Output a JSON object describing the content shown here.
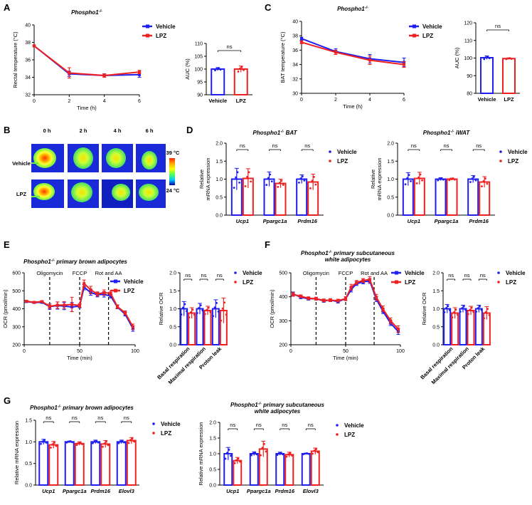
{
  "colors": {
    "vehicle": "#1f1ff0",
    "lpz": "#f02020",
    "black": "#000000"
  },
  "legend_labels": [
    "Vehicle",
    "LPZ"
  ],
  "ns_text": "ns",
  "panel_letters": [
    "A",
    "B",
    "C",
    "D",
    "E",
    "F",
    "G"
  ],
  "chart_data": [
    {
      "id": "A1",
      "type": "line",
      "title": "Phospho1-/-",
      "title_base": "Phospho1",
      "title_sup": "-/-",
      "xlabel": "Time (h)",
      "ylabel": "Rectal temperature (°C)",
      "xlim": [
        0,
        6
      ],
      "ylim": [
        32,
        40
      ],
      "x": [
        0,
        2,
        4,
        6
      ],
      "xticks": [
        0,
        2,
        4,
        6
      ],
      "yticks": [
        32,
        34,
        36,
        38,
        40
      ],
      "series": [
        {
          "name": "Vehicle",
          "values": [
            37.6,
            34.4,
            34.2,
            34.3
          ],
          "err": [
            0.1,
            0.3,
            0.2,
            0.3
          ]
        },
        {
          "name": "LPZ",
          "values": [
            37.6,
            34.5,
            34.2,
            34.6
          ],
          "err": [
            0.1,
            0.6,
            0.2,
            0.2
          ]
        }
      ]
    },
    {
      "id": "A2",
      "type": "bar",
      "ylabel": "AUC (%)",
      "ylim": [
        90,
        110
      ],
      "yticks": [
        90,
        95,
        100,
        105,
        110
      ],
      "categories": [
        "Vehicle",
        "LPZ"
      ],
      "values": [
        100,
        100
      ],
      "err": [
        0.6,
        1.2
      ],
      "sig": [
        "ns"
      ]
    },
    {
      "id": "C1",
      "type": "line",
      "title": "Phospho1-/-",
      "title_base": "Phospho1",
      "title_sup": "-/-",
      "xlabel": "Time (h)",
      "ylabel": "BAT temperature (°C)",
      "xlim": [
        0,
        6
      ],
      "ylim": [
        30,
        40
      ],
      "x": [
        0,
        2,
        4,
        6
      ],
      "xticks": [
        0,
        2,
        4,
        6
      ],
      "yticks": [
        30,
        32,
        34,
        36,
        38,
        40
      ],
      "series": [
        {
          "name": "Vehicle",
          "values": [
            37.6,
            35.8,
            34.8,
            34.3
          ],
          "err": [
            0.2,
            0.4,
            0.6,
            0.6
          ]
        },
        {
          "name": "LPZ",
          "values": [
            37.1,
            35.7,
            34.6,
            34.0
          ],
          "err": [
            0.2,
            0.3,
            0.6,
            0.4
          ]
        }
      ]
    },
    {
      "id": "C2",
      "type": "bar",
      "ylabel": "AUC (%)",
      "ylim": [
        80,
        120
      ],
      "yticks": [
        80,
        90,
        100,
        110,
        120
      ],
      "categories": [
        "Vehicle",
        "LPZ"
      ],
      "values": [
        100.2,
        99.7
      ],
      "err": [
        1.0,
        0.4
      ],
      "sig": [
        "ns"
      ]
    },
    {
      "id": "D1",
      "type": "grouped_bar",
      "title": "Phospho1-/- BAT",
      "title_base": "Phospho1",
      "title_sup": "-/-",
      "title_suffix": " BAT",
      "ylabel": "Relative mRNA expression",
      "ylim": [
        0,
        2.0
      ],
      "yticks": [
        0.0,
        0.5,
        1.0,
        1.5,
        2.0
      ],
      "categories": [
        "Ucp1",
        "Ppargc1a",
        "Prdm16"
      ],
      "series": [
        {
          "name": "Vehicle",
          "values": [
            1.0,
            1.0,
            1.0
          ],
          "err": [
            0.3,
            0.2,
            0.12
          ]
        },
        {
          "name": "LPZ",
          "values": [
            1.02,
            0.88,
            0.92
          ],
          "err": [
            0.27,
            0.12,
            0.22
          ]
        }
      ],
      "sig": [
        "ns",
        "ns",
        "ns"
      ]
    },
    {
      "id": "D2",
      "type": "grouped_bar",
      "title": "Phospho1-/- iWAT",
      "title_base": "Phospho1",
      "title_sup": "-/-",
      "title_suffix": " iWAT",
      "ylabel": "Relative mRNA expression",
      "ylim": [
        0,
        2.0
      ],
      "yticks": [
        0.0,
        0.5,
        1.0,
        1.5,
        2.0
      ],
      "categories": [
        "Ucp1",
        "Ppargc1a",
        "Prdm16"
      ],
      "series": [
        {
          "name": "Vehicle",
          "values": [
            1.0,
            1.0,
            1.0
          ],
          "err": [
            0.18,
            0.04,
            0.1
          ]
        },
        {
          "name": "LPZ",
          "values": [
            1.02,
            1.0,
            0.92
          ],
          "err": [
            0.17,
            0.03,
            0.15
          ]
        }
      ],
      "sig": [
        "ns",
        "ns",
        "ns"
      ]
    },
    {
      "id": "E1",
      "type": "line",
      "title": "Phospho1-/- primary brown adipocytes",
      "title_base": "Phospho1",
      "title_sup": "-/-",
      "title_suffix": " primary brown adipocytes",
      "xlabel": "Time (min)",
      "ylabel": "OCR (pmol/min)",
      "xlim": [
        0,
        100
      ],
      "ylim": [
        200,
        600
      ],
      "xticks": [
        0,
        50,
        100
      ],
      "yticks": [
        200,
        300,
        400,
        500,
        600
      ],
      "annotations": [
        {
          "text": "Oligomycin",
          "x": 23
        },
        {
          "text": "FCCP",
          "x": 50
        },
        {
          "text": "Rot and AA",
          "x": 76
        }
      ],
      "x": [
        2,
        9,
        16,
        23,
        30,
        36,
        43,
        50,
        54,
        60,
        66,
        72,
        78,
        84,
        91,
        98
      ],
      "series": [
        {
          "name": "Vehicle",
          "values": [
            440,
            435,
            436,
            412,
            418,
            415,
            410,
            415,
            520,
            490,
            478,
            480,
            470,
            410,
            370,
            290
          ],
          "err": [
            5,
            5,
            5,
            15,
            20,
            20,
            25,
            10,
            15,
            15,
            12,
            15,
            10,
            10,
            10,
            15
          ]
        },
        {
          "name": "LPZ",
          "values": [
            442,
            436,
            440,
            414,
            420,
            420,
            424,
            418,
            540,
            505,
            482,
            490,
            485,
            412,
            378,
            300
          ],
          "err": [
            5,
            5,
            5,
            12,
            18,
            20,
            40,
            10,
            20,
            20,
            12,
            15,
            12,
            10,
            10,
            15
          ]
        }
      ]
    },
    {
      "id": "E2",
      "type": "grouped_bar",
      "ylabel": "Relative OCR",
      "ylim": [
        0,
        2.0
      ],
      "yticks": [
        0.0,
        0.5,
        1.0,
        1.5,
        2.0
      ],
      "categories": [
        "Basal respiration",
        "Maximal respiration",
        "Proton leak"
      ],
      "series": [
        {
          "name": "Vehicle",
          "values": [
            1.0,
            1.0,
            1.0
          ],
          "err": [
            0.2,
            0.15,
            0.25
          ]
        },
        {
          "name": "LPZ",
          "values": [
            0.88,
            0.95,
            0.95
          ],
          "err": [
            0.15,
            0.12,
            0.35
          ]
        }
      ],
      "sig": [
        "ns",
        "ns",
        "ns"
      ]
    },
    {
      "id": "F1",
      "type": "line",
      "title": "Phospho1-/- primary subcutaneous white adipocytes",
      "title_base": "Phospho1",
      "title_sup": "-/-",
      "title_suffix": " primary subcutaneous",
      "title_line2": "white adipocytes",
      "xlabel": "Time (min)",
      "ylabel": "OCR (pmol/min)",
      "xlim": [
        0,
        100
      ],
      "ylim": [
        200,
        500
      ],
      "xticks": [
        0,
        50,
        100
      ],
      "yticks": [
        200,
        300,
        400,
        500
      ],
      "annotations": [
        {
          "text": "Oligomycin",
          "x": 23
        },
        {
          "text": "FCCP",
          "x": 50
        },
        {
          "text": "Rot and AA",
          "x": 76
        }
      ],
      "x": [
        2,
        9,
        16,
        23,
        30,
        36,
        43,
        50,
        55,
        60,
        66,
        72,
        78,
        84,
        91,
        98
      ],
      "series": [
        {
          "name": "Vehicle",
          "values": [
            412,
            398,
            392,
            392,
            383,
            386,
            380,
            392,
            430,
            455,
            462,
            466,
            390,
            340,
            290,
            255
          ],
          "err": [
            8,
            6,
            6,
            6,
            6,
            6,
            6,
            8,
            10,
            8,
            8,
            10,
            10,
            10,
            10,
            12
          ]
        },
        {
          "name": "LPZ",
          "values": [
            410,
            402,
            394,
            392,
            385,
            386,
            384,
            392,
            440,
            460,
            468,
            472,
            398,
            350,
            300,
            265
          ],
          "err": [
            8,
            6,
            6,
            6,
            6,
            6,
            6,
            8,
            12,
            8,
            8,
            12,
            12,
            12,
            12,
            14
          ]
        }
      ]
    },
    {
      "id": "F2",
      "type": "grouped_bar",
      "ylabel": "Relative OCR",
      "ylim": [
        0,
        2.0
      ],
      "yticks": [
        0.0,
        0.5,
        1.0,
        1.5,
        2.0
      ],
      "categories": [
        "Basal respiration",
        "Maximal respiration",
        "Proton leak"
      ],
      "series": [
        {
          "name": "Vehicle",
          "values": [
            1.0,
            1.0,
            1.0
          ],
          "err": [
            0.12,
            0.1,
            0.1
          ]
        },
        {
          "name": "LPZ",
          "values": [
            0.88,
            0.95,
            0.88
          ],
          "err": [
            0.15,
            0.12,
            0.18
          ]
        }
      ],
      "sig": [
        "ns",
        "ns",
        "ns"
      ]
    },
    {
      "id": "G1",
      "type": "grouped_bar",
      "title": "Phospho1-/- primary brown adipocytes",
      "title_base": "Phospho1",
      "title_sup": "-/-",
      "title_suffix": " primary brown adipocytes",
      "ylabel": "Relative mRNA expression",
      "ylim": [
        0,
        1.5
      ],
      "yticks": [
        0.0,
        0.5,
        1.0,
        1.5
      ],
      "categories": [
        "Ucp1",
        "Ppargc1a",
        "Prdm16",
        "Elovl3"
      ],
      "series": [
        {
          "name": "Vehicle",
          "values": [
            1.0,
            1.0,
            1.0,
            1.0
          ],
          "err": [
            0.06,
            0.02,
            0.04,
            0.04
          ]
        },
        {
          "name": "LPZ",
          "values": [
            0.93,
            0.96,
            0.95,
            1.03
          ],
          "err": [
            0.08,
            0.04,
            0.08,
            0.07
          ]
        }
      ],
      "sig": [
        "ns",
        "ns",
        "ns",
        "ns"
      ]
    },
    {
      "id": "G2",
      "type": "grouped_bar",
      "title": "Phospho1-/- primary subcutaneous white adipocytes",
      "title_base": "Phospho1",
      "title_sup": "-/-",
      "title_suffix": " primary subcutaneous",
      "title_line2": "white adipocytes",
      "ylabel": "Relative mRNA expression",
      "ylim": [
        0,
        2.0
      ],
      "yticks": [
        0.0,
        0.5,
        1.0,
        1.5,
        2.0
      ],
      "categories": [
        "Ucp1",
        "Ppargc1a",
        "Prdm16",
        "Elovl3"
      ],
      "series": [
        {
          "name": "Vehicle",
          "values": [
            1.0,
            1.0,
            1.0,
            1.0
          ],
          "err": [
            0.2,
            0.06,
            0.05,
            0.02
          ]
        },
        {
          "name": "LPZ",
          "values": [
            0.78,
            1.15,
            0.97,
            1.08
          ],
          "err": [
            0.1,
            0.25,
            0.08,
            0.1
          ]
        }
      ],
      "sig": [
        "ns",
        "ns",
        "ns",
        "ns"
      ]
    }
  ],
  "thermal": {
    "col_labels": [
      "0 h",
      "2 h",
      "4 h",
      "6 h"
    ],
    "row_labels": [
      "Vehicle",
      "LPZ"
    ],
    "scale_max": "39 °C",
    "scale_min": "24 °C"
  }
}
